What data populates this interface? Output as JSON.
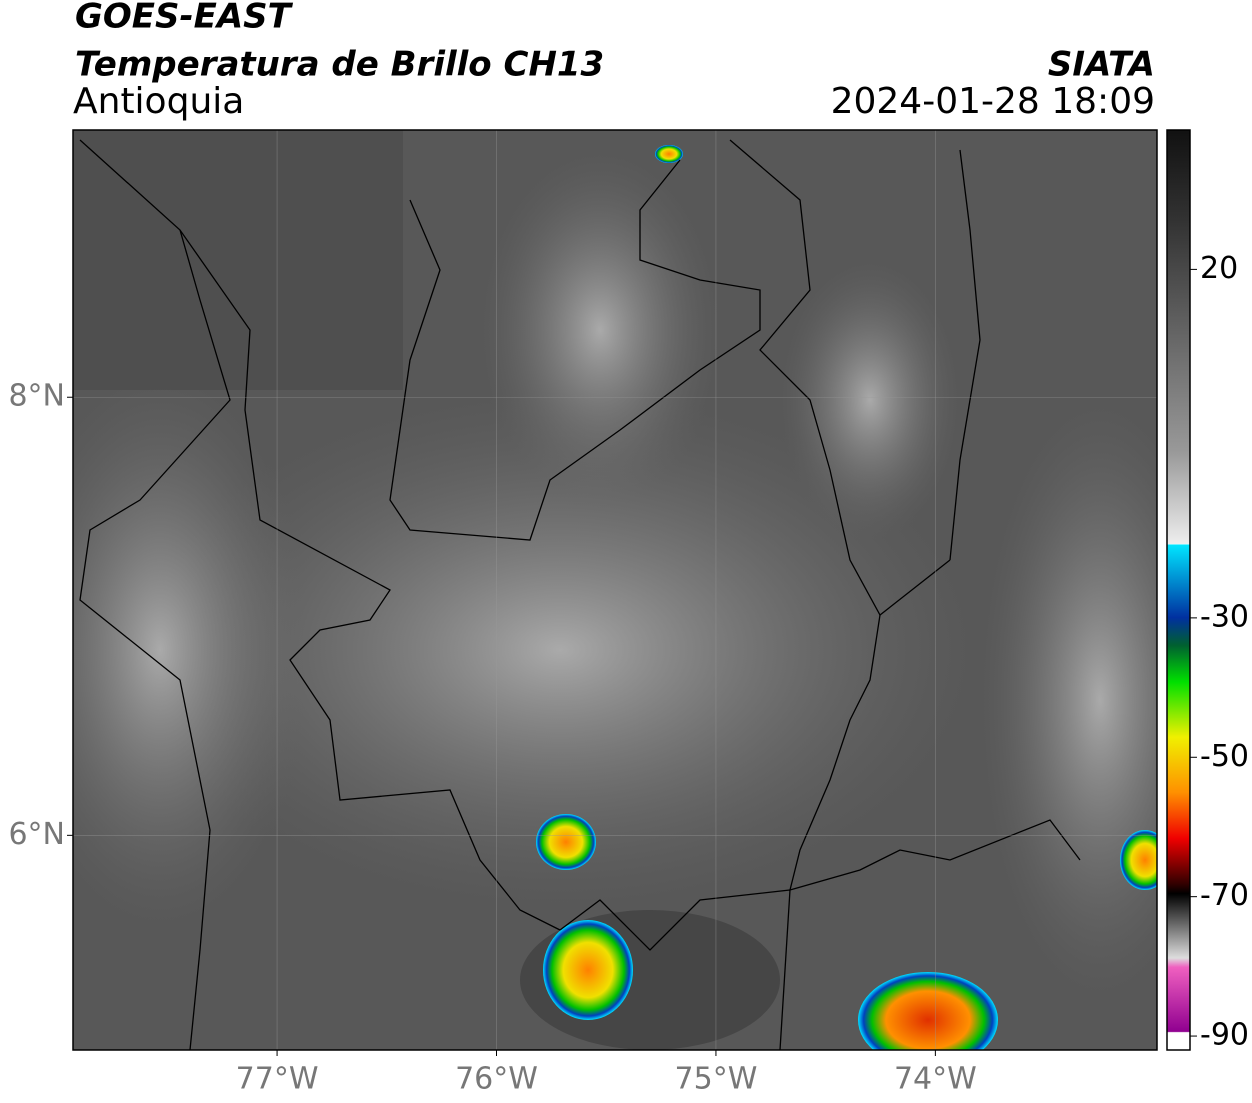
{
  "header": {
    "title": "GOES-EAST",
    "subtitle": "Temperatura de Brillo CH13",
    "region": "Antioquia",
    "source": "SIATA",
    "timestamp": "2024-01-28 18:09"
  },
  "map": {
    "xlim": [
      -77.93,
      -72.99
    ],
    "ylim": [
      5.02,
      9.22
    ],
    "xticks": [
      {
        "value": -77,
        "label": "77°W"
      },
      {
        "value": -76,
        "label": "76°W"
      },
      {
        "value": -75,
        "label": "75°W"
      },
      {
        "value": -74,
        "label": "74°W"
      }
    ],
    "yticks": [
      {
        "value": 8,
        "label": "8°N"
      },
      {
        "value": 6,
        "label": "6°N"
      }
    ]
  },
  "colorbar": {
    "lim": [
      -92,
      40
    ],
    "ticks": [
      20,
      -30,
      -50,
      -70,
      -90
    ]
  }
}
